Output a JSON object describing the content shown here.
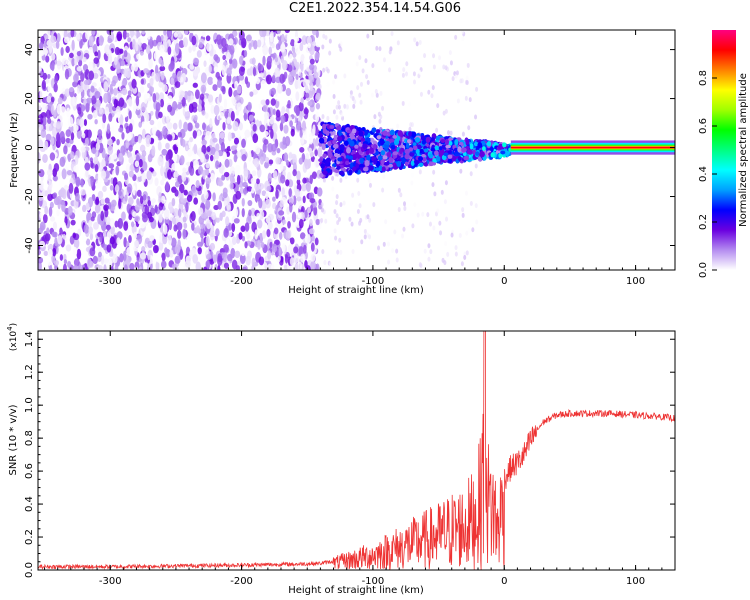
{
  "title": "C2E1.2022.354.14.54.G06",
  "colors": {
    "snr_line": "#ee3333",
    "axis": "#000000",
    "grid": "#000000",
    "background": "#ffffff"
  },
  "chart_data": [
    {
      "type": "heatmap",
      "xlabel": "Height of straight line (km)",
      "ylabel": "Frequency (Hz)",
      "xlim": [
        -355,
        130
      ],
      "ylim": [
        -50,
        48
      ],
      "x_ticks": [
        -300,
        -200,
        -100,
        0,
        100
      ],
      "y_ticks": [
        -40,
        -20,
        0,
        20,
        40
      ],
      "colorbar": {
        "label": "Normalized spectral amplitude",
        "range": [
          0,
          1
        ],
        "ticks": [
          0.0,
          0.2,
          0.4,
          0.6,
          0.8
        ],
        "colormap": [
          "#ffffff",
          "#b48cf0",
          "#6a00e0",
          "#0000ff",
          "#00a0ff",
          "#00ffff",
          "#00ff80",
          "#00ff00",
          "#a0ff00",
          "#ffff00",
          "#ff8000",
          "#ff0000",
          "#ff0080"
        ]
      },
      "regions": [
        {
          "x_range": [
            -355,
            -140
          ],
          "description_level": "noise",
          "freq_range": [
            -50,
            48
          ],
          "amplitude": [
            0.0,
            0.15
          ]
        },
        {
          "x_range": [
            -140,
            5
          ],
          "freq_center": 0,
          "amplitude": [
            0.1,
            0.4
          ]
        },
        {
          "x_range": [
            5,
            130
          ],
          "freq_center": 0,
          "amplitude": [
            0.8,
            1.0
          ]
        }
      ]
    },
    {
      "type": "line",
      "xlabel": "Height of straight line (km)",
      "ylabel": "SNR (10 * v/v)",
      "y_multiplier": "(x10^4)",
      "xlim": [
        -355,
        130
      ],
      "ylim": [
        0.0,
        1.45
      ],
      "x_ticks": [
        -300,
        -200,
        -100,
        0,
        100
      ],
      "y_ticks": [
        0.0,
        0.2,
        0.4,
        0.6,
        0.8,
        1.0,
        1.2,
        1.4
      ],
      "y_tick_labels": [
        "0.0",
        "0.2",
        "0.4",
        "0.6",
        "0.8",
        "1.0",
        "1.2",
        "1.4"
      ],
      "series": [
        {
          "x": [
            -355,
            -300,
            -250,
            -200,
            -160,
            -140,
            -125,
            -110,
            -100,
            -90,
            -80,
            -70,
            -60,
            -50,
            -40,
            -30,
            -22,
            -17,
            -15,
            -12,
            -8,
            -5,
            0,
            5,
            10,
            15,
            20,
            25,
            30,
            40,
            50,
            60,
            80,
            100,
            120,
            130
          ],
          "values": [
            0.02,
            0.02,
            0.025,
            0.03,
            0.035,
            0.04,
            0.06,
            0.09,
            0.11,
            0.14,
            0.17,
            0.2,
            0.23,
            0.26,
            0.3,
            0.33,
            0.4,
            0.55,
            1.45,
            0.5,
            0.45,
            0.3,
            0.55,
            0.62,
            0.65,
            0.7,
            0.78,
            0.85,
            0.9,
            0.94,
            0.95,
            0.95,
            0.95,
            0.94,
            0.93,
            0.92
          ]
        }
      ]
    }
  ]
}
